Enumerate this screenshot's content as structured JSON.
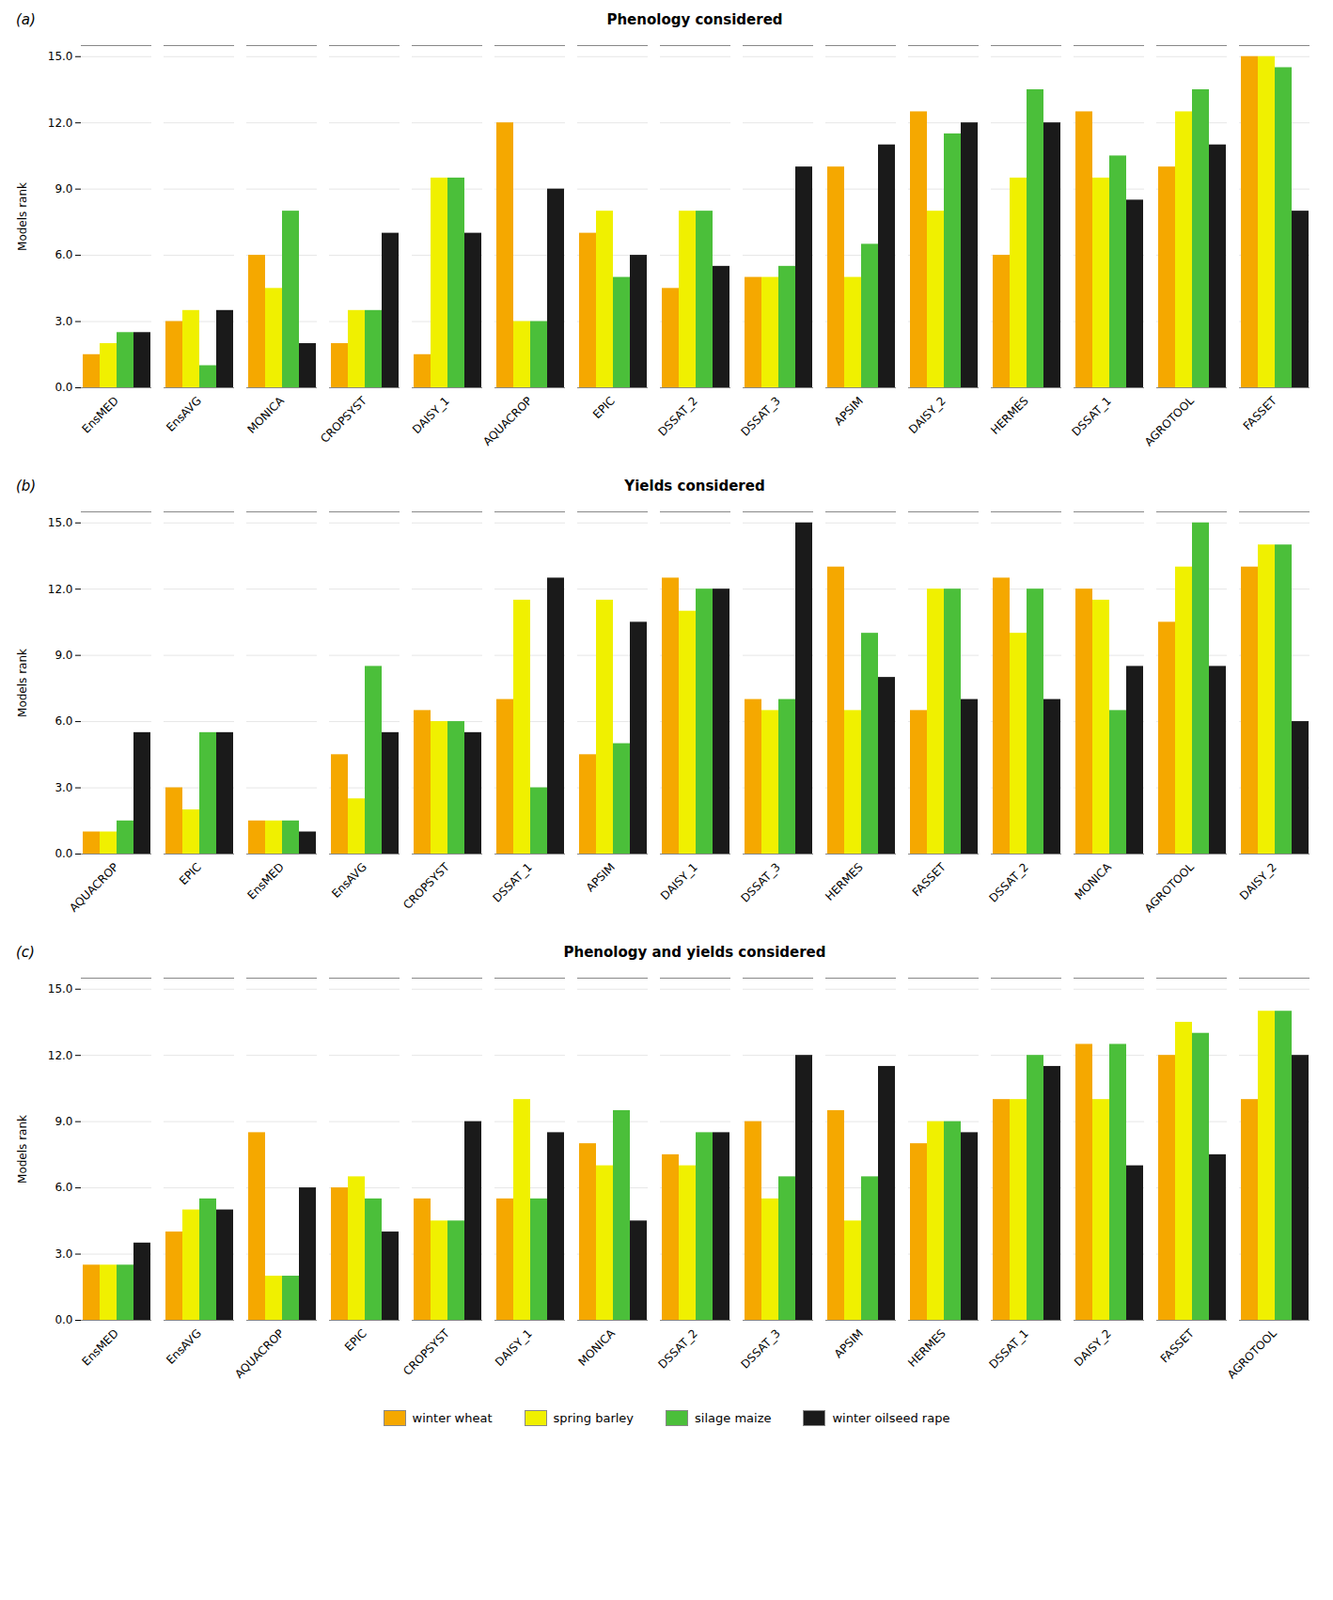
{
  "chart_data": [
    {
      "type": "bar",
      "title": "Phenology considered",
      "annotations": [
        "(a)"
      ],
      "categories": [
        "EnsMED",
        "EnsAVG",
        "MONICA",
        "CROPSYST",
        "DAISY_1",
        "AQUACROP",
        "EPIC",
        "DSSAT_2",
        "DSSAT_3",
        "APSIM",
        "DAISY_2",
        "HERMES",
        "DSSAT_1",
        "AGROTOOL",
        "FASSET"
      ],
      "series": [
        {
          "name": "winter wheat",
          "color": "#F5A800",
          "values": [
            1.5,
            3.0,
            6.0,
            2.0,
            1.5,
            12.0,
            7.0,
            4.5,
            5.0,
            10.0,
            12.5,
            6.0,
            12.5,
            10.0,
            15.0
          ]
        },
        {
          "name": "spring barley",
          "color": "#F0F000",
          "values": [
            2.0,
            3.5,
            4.5,
            3.5,
            9.5,
            3.0,
            8.0,
            8.0,
            5.0,
            5.0,
            8.0,
            9.5,
            9.5,
            12.5,
            15.0
          ]
        },
        {
          "name": "silage maize",
          "color": "#4BBF3A",
          "values": [
            2.5,
            1.0,
            8.0,
            3.5,
            9.5,
            3.0,
            5.0,
            8.0,
            5.5,
            6.5,
            11.5,
            13.5,
            10.5,
            13.5,
            14.5
          ]
        },
        {
          "name": "winter oilseed rape",
          "color": "#1A1A1A",
          "values": [
            2.5,
            3.5,
            2.0,
            7.0,
            7.0,
            9.0,
            6.0,
            5.5,
            10.0,
            11.0,
            12.0,
            12.0,
            8.5,
            11.0,
            8.0
          ]
        }
      ],
      "ylabel": "Models rank",
      "ylim": [
        0,
        15.5
      ],
      "yticks": [
        {
          "value": 0,
          "label": "0.0"
        },
        {
          "value": 3,
          "label": "3.0"
        },
        {
          "value": 6,
          "label": "6.0"
        },
        {
          "value": 9,
          "label": "9.0"
        },
        {
          "value": 12,
          "label": "12.0"
        },
        {
          "value": 15,
          "label": "15.0"
        }
      ],
      "grid": true
    },
    {
      "type": "bar",
      "title": "Yields considered",
      "annotations": [
        "(b)"
      ],
      "categories": [
        "AQUACROP",
        "EPIC",
        "EnsMED",
        "EnsAVG",
        "CROPSYST",
        "DSSAT_1",
        "APSIM",
        "DAISY_1",
        "DSSAT_3",
        "HERMES",
        "FASSET",
        "DSSAT_2",
        "MONICA",
        "AGROTOOL",
        "DAISY_2"
      ],
      "series": [
        {
          "name": "winter wheat",
          "color": "#F5A800",
          "values": [
            1.0,
            3.0,
            1.5,
            4.5,
            6.5,
            7.0,
            4.5,
            12.5,
            7.0,
            13.0,
            6.5,
            12.5,
            12.0,
            10.5,
            13.0
          ]
        },
        {
          "name": "spring barley",
          "color": "#F0F000",
          "values": [
            1.0,
            2.0,
            1.5,
            2.5,
            6.0,
            11.5,
            11.5,
            11.0,
            6.5,
            6.5,
            12.0,
            10.0,
            11.5,
            13.0,
            14.0
          ]
        },
        {
          "name": "silage maize",
          "color": "#4BBF3A",
          "values": [
            1.5,
            5.5,
            1.5,
            8.5,
            6.0,
            3.0,
            5.0,
            12.0,
            7.0,
            10.0,
            12.0,
            12.0,
            6.5,
            15.0,
            14.0
          ]
        },
        {
          "name": "winter oilseed rape",
          "color": "#1A1A1A",
          "values": [
            5.5,
            5.5,
            1.0,
            5.5,
            5.5,
            12.5,
            10.5,
            12.0,
            15.0,
            8.0,
            7.0,
            7.0,
            8.5,
            8.5,
            6.0
          ]
        }
      ],
      "ylabel": "Models rank",
      "ylim": [
        0,
        15.5
      ],
      "yticks": [
        {
          "value": 0,
          "label": "0.0"
        },
        {
          "value": 3,
          "label": "3.0"
        },
        {
          "value": 6,
          "label": "6.0"
        },
        {
          "value": 9,
          "label": "9.0"
        },
        {
          "value": 12,
          "label": "12.0"
        },
        {
          "value": 15,
          "label": "15.0"
        }
      ],
      "grid": true
    },
    {
      "type": "bar",
      "title": "Phenology and yields considered",
      "annotations": [
        "(c)"
      ],
      "categories": [
        "EnsMED",
        "EnsAVG",
        "AQUACROP",
        "EPIC",
        "CROPSYST",
        "DAISY_1",
        "MONICA",
        "DSSAT_2",
        "DSSAT_3",
        "APSIM",
        "HERMES",
        "DSSAT_1",
        "DAISY_2",
        "FASSET",
        "AGROTOOL"
      ],
      "series": [
        {
          "name": "winter wheat",
          "color": "#F5A800",
          "values": [
            2.5,
            4.0,
            8.5,
            6.0,
            5.5,
            5.5,
            8.0,
            7.5,
            9.0,
            9.5,
            8.0,
            10.0,
            12.5,
            12.0,
            10.0
          ]
        },
        {
          "name": "spring barley",
          "color": "#F0F000",
          "values": [
            2.5,
            5.0,
            2.0,
            6.5,
            4.5,
            10.0,
            7.0,
            7.0,
            5.5,
            4.5,
            9.0,
            10.0,
            10.0,
            13.5,
            14.0
          ]
        },
        {
          "name": "silage maize",
          "color": "#4BBF3A",
          "values": [
            2.5,
            5.5,
            2.0,
            5.5,
            4.5,
            5.5,
            9.5,
            8.5,
            6.5,
            6.5,
            9.0,
            12.0,
            12.5,
            13.0,
            14.0
          ]
        },
        {
          "name": "winter oilseed rape",
          "color": "#1A1A1A",
          "values": [
            3.5,
            5.0,
            6.0,
            4.0,
            9.0,
            8.5,
            4.5,
            8.5,
            12.0,
            11.5,
            8.5,
            11.5,
            7.0,
            7.5,
            12.0
          ]
        }
      ],
      "ylabel": "Models rank",
      "ylim": [
        0,
        15.5
      ],
      "yticks": [
        {
          "value": 0,
          "label": "0.0"
        },
        {
          "value": 3,
          "label": "3.0"
        },
        {
          "value": 6,
          "label": "6.0"
        },
        {
          "value": 9,
          "label": "9.0"
        },
        {
          "value": 12,
          "label": "12.0"
        },
        {
          "value": 15,
          "label": "15.0"
        }
      ],
      "grid": true,
      "legend": "bottom"
    }
  ]
}
